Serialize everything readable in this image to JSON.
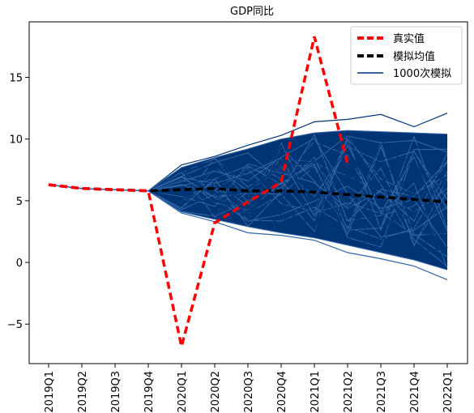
{
  "chart_data": {
    "type": "line",
    "title": "GDP同比",
    "xlabel": "",
    "ylabel": "",
    "categories": [
      "2019Q1",
      "2019Q2",
      "2019Q3",
      "2019Q4",
      "2020Q1",
      "2020Q2",
      "2020Q3",
      "2020Q4",
      "2021Q1",
      "2021Q2",
      "2021Q3",
      "2021Q4",
      "2022Q1"
    ],
    "ylim": [
      -8.2,
      19.5
    ],
    "yticks": [
      -5,
      0,
      5,
      10,
      15
    ],
    "ytick_labels": [
      "−5",
      "0",
      "5",
      "10",
      "15"
    ],
    "grid": false,
    "legend_position": "top-right",
    "series": [
      {
        "name": "真实值",
        "style": "dashed",
        "color": "#ff0000",
        "values": [
          6.3,
          6.0,
          5.9,
          5.8,
          -6.8,
          3.2,
          4.9,
          6.5,
          18.3,
          8.0,
          null,
          null,
          null
        ]
      },
      {
        "name": "模拟均值",
        "style": "dashed",
        "color": "#000000",
        "values": [
          6.3,
          6.0,
          5.9,
          5.8,
          5.9,
          6.0,
          5.8,
          5.8,
          5.7,
          5.5,
          5.3,
          5.1,
          4.9
        ]
      },
      {
        "name": "1000次模拟",
        "style": "solid",
        "color": "#003575",
        "band_upper": [
          6.3,
          6.0,
          5.9,
          5.8,
          7.7,
          8.5,
          9.2,
          10.0,
          10.5,
          10.7,
          10.6,
          10.5,
          10.4
        ],
        "band_lower": [
          6.3,
          6.0,
          5.9,
          5.8,
          4.1,
          3.5,
          2.9,
          2.4,
          2.0,
          1.4,
          0.8,
          0.2,
          -0.6
        ],
        "outlier_upper": [
          6.3,
          6.0,
          5.9,
          5.8,
          7.9,
          8.6,
          9.5,
          10.3,
          11.4,
          11.6,
          12.0,
          11.0,
          12.1
        ],
        "outlier_lower": [
          6.3,
          6.0,
          5.9,
          5.8,
          4.0,
          3.3,
          2.4,
          2.2,
          1.8,
          0.8,
          0.3,
          -0.3,
          -1.4
        ]
      }
    ]
  },
  "colors": {
    "real": "#ff0000",
    "mean": "#000000",
    "sim": "#003575",
    "sim_light": "#3366a6"
  }
}
